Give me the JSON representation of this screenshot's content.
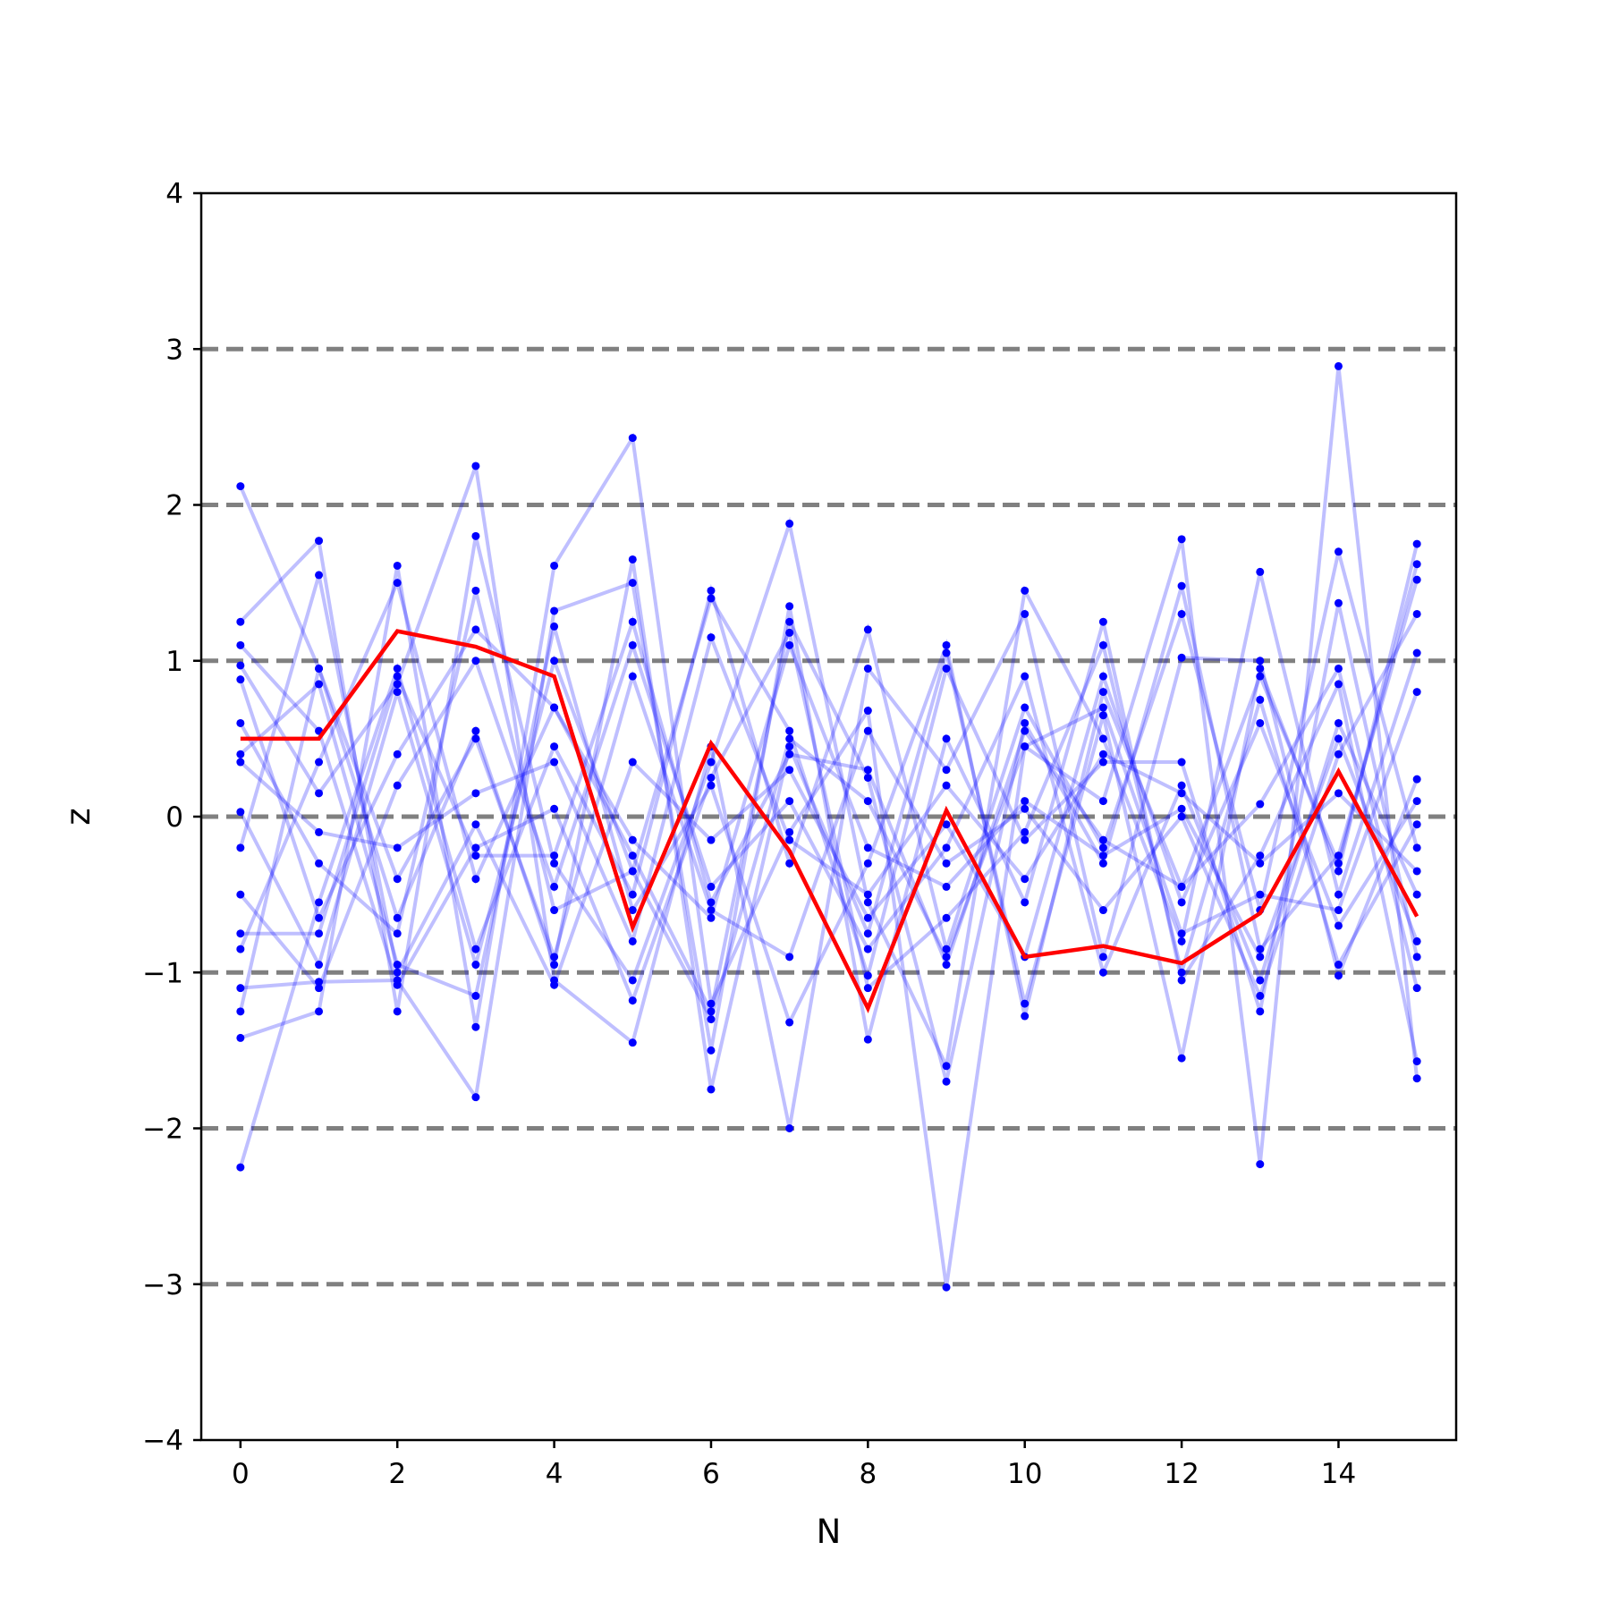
{
  "chart_data": {
    "type": "line",
    "title": "",
    "xlabel": "N",
    "ylabel": "z",
    "xlim": [
      -0.5,
      15.5
    ],
    "ylim": [
      -4,
      4
    ],
    "xticks": [
      0,
      2,
      4,
      6,
      8,
      10,
      12,
      14
    ],
    "xtick_labels": [
      "0",
      "2",
      "4",
      "6",
      "8",
      "10",
      "12",
      "14"
    ],
    "yticks": [
      -4,
      -3,
      -2,
      -1,
      0,
      1,
      2,
      3,
      4
    ],
    "ytick_labels": [
      "−4",
      "−3",
      "−2",
      "−1",
      "0",
      "1",
      "2",
      "3",
      "4"
    ],
    "reference_lines": [
      -3,
      -2,
      -1,
      0,
      1,
      2,
      3
    ],
    "x": [
      0,
      1,
      2,
      3,
      4,
      5,
      6,
      7,
      8,
      9,
      10,
      11,
      12,
      13,
      14,
      15
    ],
    "highlight": {
      "color": "#ff0000",
      "values": [
        0.5,
        0.5,
        1.19,
        1.09,
        0.9,
        -0.71,
        0.47,
        -0.22,
        -1.23,
        0.04,
        -0.9,
        -0.83,
        -0.94,
        -0.62,
        0.29,
        -0.64
      ]
    },
    "background_series_color": "#0000ff",
    "reference_line_color": "#808080",
    "background_series": [
      [
        2.12,
        0.95,
        -0.65,
        0.55,
        -0.95,
        1.65,
        -1.75,
        0.45,
        -0.75,
        1.05,
        -1.2,
        0.65,
        -1.55,
        0.95,
        -0.35,
        1.75
      ],
      [
        -2.25,
        -0.55,
        0.95,
        -0.85,
        0.45,
        -0.5,
        1.45,
        -0.3,
        1.2,
        -0.85,
        0.7,
        -0.2,
        1.3,
        -0.6,
        1.7,
        -0.2
      ],
      [
        1.25,
        1.77,
        -1.25,
        1.8,
        -0.3,
        -1.05,
        0.35,
        1.88,
        -0.55,
        -1.6,
        1.45,
        0.5,
        -0.8,
        1.57,
        -0.5,
        1.05
      ],
      [
        -1.42,
        -1.25,
        1.61,
        -1.35,
        1.61,
        2.43,
        -1.2,
        -0.1,
        0.68,
        -3.02,
        0.45,
        0.1,
        1.78,
        -2.23,
        2.89,
        -1.68
      ],
      [
        0.97,
        0.15,
        0.85,
        2.25,
        -1.05,
        -1.45,
        0.45,
        -2.0,
        0.95,
        0.3,
        1.3,
        -0.9,
        1.02,
        1.0,
        -1.02,
        0.24
      ],
      [
        -1.1,
        -1.06,
        -1.05,
        -1.8,
        1.32,
        1.5,
        -1.5,
        1.35,
        -1.43,
        0.5,
        -0.55,
        1.25,
        -1.05,
        -0.25,
        0.85,
        -1.57
      ],
      [
        0.6,
        -0.3,
        -0.75,
        1.45,
        -0.6,
        -0.35,
        1.4,
        0.55,
        -1.02,
        0.95,
        -0.15,
        0.35,
        0.35,
        -1.25,
        1.37,
        -0.9
      ],
      [
        -0.85,
        0.35,
        1.5,
        -0.4,
        0.7,
        -0.25,
        -1.25,
        1.25,
        0.25,
        -1.7,
        0.6,
        -0.3,
        1.48,
        -0.85,
        -0.25,
        1.52
      ],
      [
        0.4,
        0.85,
        -0.95,
        -1.15,
        1.22,
        -0.6,
        0.2,
        -1.32,
        -0.3,
        1.1,
        -1.28,
        0.8,
        -0.45,
        0.08,
        0.95,
        -1.1
      ],
      [
        -0.5,
        -1.1,
        0.2,
        1.0,
        -0.45,
        1.1,
        -0.45,
        0.1,
        -0.85,
        -0.2,
        0.9,
        -1.0,
        0.2,
        -1.05,
        0.6,
        -0.5
      ],
      [
        1.1,
        0.55,
        -1.08,
        -0.2,
        0.05,
        -1.18,
        0.25,
        1.18,
        -1.1,
        -0.65,
        -0.1,
        1.1,
        -1.0,
        0.75,
        -0.95,
        -0.05
      ],
      [
        -1.25,
        0.95,
        -0.4,
        0.5,
        -0.9,
        0.9,
        -0.6,
        -0.9,
        0.55,
        -0.3,
        0.05,
        -0.6,
        0.0,
        -1.15,
        0.4,
        1.3
      ],
      [
        0.03,
        -0.95,
        0.8,
        -0.95,
        1.0,
        -0.35,
        -1.3,
        0.5,
        0.1,
        -0.9,
        0.45,
        0.7,
        -0.75,
        -0.5,
        -0.6,
        0.8
      ],
      [
        0.35,
        -0.1,
        -0.2,
        0.15,
        0.35,
        -0.8,
        1.15,
        -0.15,
        -0.5,
        0.2,
        -0.4,
        0.4,
        0.15,
        -0.3,
        0.15,
        -0.35
      ],
      [
        -0.2,
        1.55,
        -1.0,
        -0.05,
        -1.08,
        0.35,
        -0.15,
        0.3,
        -0.65,
        -0.05,
        -0.9,
        0.9,
        -0.55,
        0.6,
        -0.7,
        0.1
      ],
      [
        0.88,
        -0.65,
        0.4,
        1.2,
        0.7,
        -0.15,
        -0.65,
        1.1,
        -0.2,
        -0.45,
        0.1,
        -0.25,
        0.05,
        -0.9,
        0.5,
        -0.8
      ],
      [
        -0.75,
        -0.75,
        0.9,
        -0.25,
        -0.25,
        1.25,
        -0.55,
        0.4,
        0.3,
        -0.95,
        0.55,
        -0.15,
        -0.45,
        0.9,
        -0.3,
        1.62
      ]
    ]
  }
}
